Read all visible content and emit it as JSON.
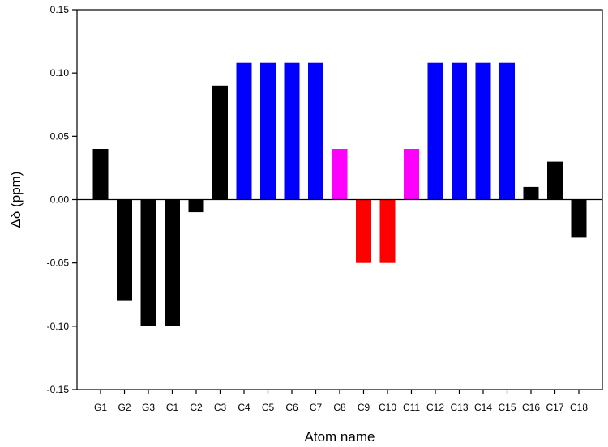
{
  "chart_data": {
    "type": "bar",
    "title": "",
    "xlabel": "Atom name",
    "ylabel": "Δδ (ppm)",
    "categories": [
      "G1",
      "G2",
      "G3",
      "C1",
      "C2",
      "C3",
      "C4",
      "C5",
      "C6",
      "C7",
      "C8",
      "C9",
      "C10",
      "C11",
      "C12",
      "C13",
      "C14",
      "C15",
      "C16",
      "C17",
      "C18"
    ],
    "values": [
      0.04,
      -0.08,
      -0.1,
      -0.1,
      -0.01,
      0.09,
      0.108,
      0.108,
      0.108,
      0.108,
      0.04,
      -0.05,
      -0.05,
      0.04,
      0.108,
      0.108,
      0.108,
      0.108,
      0.01,
      0.03,
      -0.03
    ],
    "bar_colors": [
      "#000000",
      "#000000",
      "#000000",
      "#000000",
      "#000000",
      "#000000",
      "#0000ff",
      "#0000ff",
      "#0000ff",
      "#0000ff",
      "#ff00ff",
      "#ff0000",
      "#ff0000",
      "#ff00ff",
      "#0000ff",
      "#0000ff",
      "#0000ff",
      "#0000ff",
      "#000000",
      "#000000",
      "#000000"
    ],
    "ylim": [
      -0.15,
      0.15
    ],
    "yticks": [
      "-0.15",
      "-0.10",
      "-0.05",
      "0.00",
      "0.05",
      "0.10",
      "0.15"
    ],
    "grid": false,
    "legend": "none",
    "zero_line": true
  }
}
